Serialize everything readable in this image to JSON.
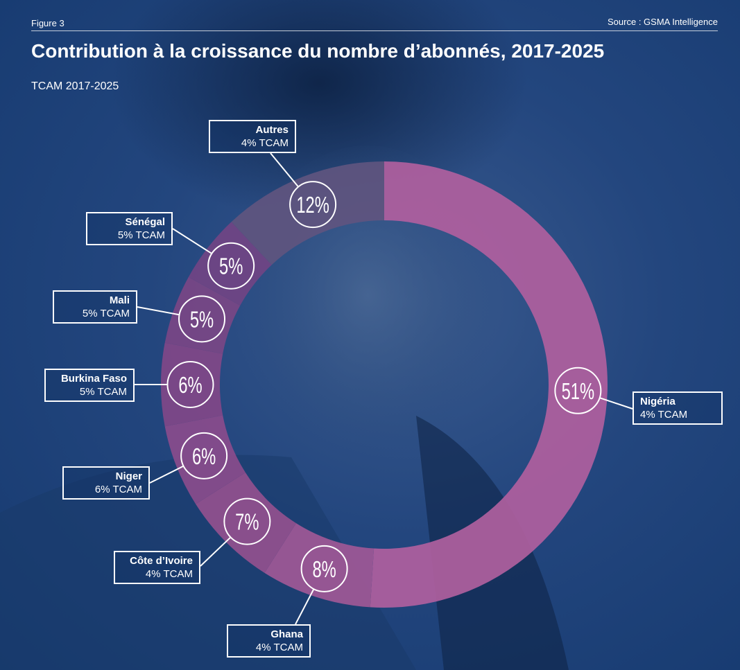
{
  "figure_label": "Figure 3",
  "source": "Source : GSMA Intelligence",
  "chart_data": {
    "type": "pie",
    "title": "Contribution à la croissance du nombre d’abonnés, 2017-2025",
    "subtitle": "TCAM 2017-2025",
    "slices": [
      {
        "name": "Nigéria",
        "value": 51,
        "value_label": "51%",
        "rate": "4% TCAM",
        "color": "#b0609e"
      },
      {
        "name": "Ghana",
        "value": 8,
        "value_label": "8%",
        "rate": "4% TCAM",
        "color": "#a05896"
      },
      {
        "name": "Côte d’Ivoire",
        "value": 7,
        "value_label": "7%",
        "rate": "4% TCAM",
        "color": "#93508e"
      },
      {
        "name": "Niger",
        "value": 6,
        "value_label": "6%",
        "rate": "6% TCAM",
        "color": "#8a4c8c"
      },
      {
        "name": "Burkina Faso",
        "value": 6,
        "value_label": "6%",
        "rate": "5% TCAM",
        "color": "#814888"
      },
      {
        "name": "Mali",
        "value": 5,
        "value_label": "5%",
        "rate": "5% TCAM",
        "color": "#7a4786"
      },
      {
        "name": "Sénégal",
        "value": 5,
        "value_label": "5%",
        "rate": "5% TCAM",
        "color": "#714484"
      },
      {
        "name": "Autres",
        "value": 12,
        "value_label": "12%",
        "rate": "4% TCAM",
        "color": "#5f557f"
      }
    ]
  }
}
